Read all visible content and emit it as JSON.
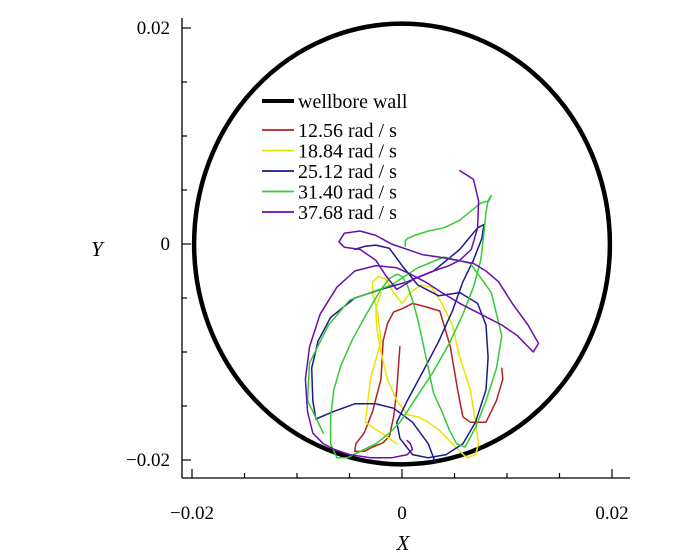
{
  "chart_data": {
    "type": "line",
    "title": "",
    "xlabel": "X",
    "ylabel": "Y",
    "xlim": [
      -0.02,
      0.02
    ],
    "ylim": [
      -0.02,
      0.02
    ],
    "x_ticks": [
      -0.02,
      0,
      0.02
    ],
    "x_tick_labels": [
      "−0.02",
      "0",
      "0.02"
    ],
    "y_ticks": [
      -0.02,
      0,
      0.02
    ],
    "y_tick_labels": [
      "−0.02",
      "0",
      "0.02"
    ],
    "grid": false,
    "legend_position": "top-left",
    "wellbore_wall": {
      "name": "wellbore wall",
      "color": "#000000",
      "center": [
        0,
        0
      ],
      "radius_x": 0.0198,
      "radius_y": 0.0204
    },
    "series": [
      {
        "name": "12.56 rad / s",
        "color": "#b22222",
        "x": [
          0.0095,
          0.0096,
          0.009,
          0.008,
          0.0065,
          0.0058,
          0.0053,
          0.0046,
          0.0036,
          0.0022,
          0.001,
          0.0,
          -0.0008,
          -0.0014,
          -0.0018,
          -0.002,
          -0.0028,
          -0.0036,
          -0.0044,
          -0.0045,
          -0.0036,
          -0.0028,
          -0.0018,
          -0.0012,
          -0.0008,
          -0.0005,
          -0.0002
        ],
        "y": [
          -0.0115,
          -0.0125,
          -0.0145,
          -0.0165,
          -0.0165,
          -0.016,
          -0.0135,
          -0.0095,
          -0.0062,
          -0.0058,
          -0.0055,
          -0.006,
          -0.0063,
          -0.0074,
          -0.009,
          -0.0125,
          -0.0155,
          -0.0175,
          -0.0185,
          -0.0192,
          -0.0192,
          -0.0188,
          -0.0184,
          -0.0178,
          -0.016,
          -0.0135,
          -0.0095
        ]
      },
      {
        "name": "18.84 rad / s",
        "color": "#e6e600",
        "x": [
          -0.0005,
          -0.0035,
          -0.003,
          -0.002,
          -0.0023,
          -0.0028,
          -0.0028,
          -0.0022,
          -0.0015,
          -0.0008,
          0.0,
          0.0008,
          0.0018,
          0.0028,
          0.0038,
          0.0048,
          0.0055,
          0.0065,
          0.007,
          0.0073,
          0.007,
          0.0062,
          0.0055,
          0.0045,
          0.0035,
          0.0025,
          0.0015,
          0.0005,
          -0.0005,
          -0.0014,
          -0.002,
          -0.0024,
          -0.0025,
          -0.002
        ],
        "y": [
          -0.0185,
          -0.0165,
          -0.0125,
          -0.009,
          -0.0065,
          -0.0045,
          -0.0035,
          -0.003,
          -0.0033,
          -0.0045,
          -0.0055,
          -0.0045,
          -0.0038,
          -0.004,
          -0.0055,
          -0.0075,
          -0.0105,
          -0.0135,
          -0.0165,
          -0.0185,
          -0.0195,
          -0.0198,
          -0.0192,
          -0.0182,
          -0.0172,
          -0.0165,
          -0.016,
          -0.0158,
          -0.0145,
          -0.0125,
          -0.01,
          -0.0078,
          -0.006,
          -0.0045
        ]
      },
      {
        "name": "25.12 rad / s",
        "color": "#1a1a8c",
        "x": [
          -0.0045,
          -0.0035,
          -0.0025,
          -0.0012,
          0.0,
          0.0015,
          0.0035,
          0.0055,
          0.0072,
          0.008,
          0.0082,
          0.008,
          0.007,
          0.0058,
          0.0042,
          0.0025,
          0.001,
          -0.0002,
          -0.0005,
          0.0005,
          0.002,
          0.0035,
          0.0048,
          0.0058,
          0.0068,
          0.0076,
          0.0078,
          0.0072,
          0.0055,
          0.003,
          0.0005,
          -0.002,
          -0.0045,
          -0.0068,
          -0.008,
          -0.0086,
          -0.0085,
          -0.0082,
          -0.0065,
          -0.0045,
          -0.0025,
          -0.0008,
          0.001,
          0.0025,
          0.003,
          0.0032
        ],
        "y": [
          -0.0005,
          -0.0002,
          -0.0001,
          -0.0004,
          -0.002,
          -0.0038,
          -0.0048,
          -0.0045,
          -0.0055,
          -0.0075,
          -0.0105,
          -0.0135,
          -0.0165,
          -0.0185,
          -0.0195,
          -0.0198,
          -0.0195,
          -0.018,
          -0.0165,
          -0.0145,
          -0.0118,
          -0.009,
          -0.0062,
          -0.0035,
          -0.0015,
          0.0005,
          0.0018,
          0.0015,
          -0.0005,
          -0.0025,
          -0.0035,
          -0.0042,
          -0.005,
          -0.0068,
          -0.009,
          -0.0115,
          -0.0145,
          -0.0162,
          -0.0155,
          -0.0148,
          -0.0148,
          -0.0152,
          -0.0165,
          -0.0185,
          -0.0198,
          -0.0202
        ]
      },
      {
        "name": "31.40 rad / s",
        "color": "#33cc33",
        "x": [
          -0.0075,
          -0.009,
          -0.0088,
          -0.007,
          -0.005,
          -0.003,
          -0.001,
          0.0015,
          0.004,
          0.0065,
          0.0085,
          0.0095,
          0.009,
          0.008,
          0.007,
          0.006,
          0.0052,
          0.0045,
          0.0038,
          0.003,
          0.0025,
          0.002,
          0.0015,
          0.001,
          0.0005,
          0.0,
          -0.0005,
          -0.0012,
          -0.002,
          -0.0028,
          -0.0038,
          -0.0048,
          -0.0058,
          -0.0065,
          -0.0068,
          -0.0068,
          -0.0062,
          -0.0052,
          -0.004,
          -0.0025,
          -0.0012,
          -0.0002,
          0.0005,
          0.0015,
          0.003,
          0.0045,
          0.0058,
          0.0068,
          0.0075,
          0.0078,
          0.008,
          0.0082,
          0.0085,
          0.0083,
          0.0075,
          0.0065,
          0.0055,
          0.004,
          0.0025,
          0.0012,
          0.0005,
          0.0003,
          0.0003
        ],
        "y": [
          -0.0175,
          -0.0145,
          -0.011,
          -0.0075,
          -0.0052,
          -0.0045,
          -0.0038,
          -0.0022,
          -0.0012,
          -0.0018,
          -0.0045,
          -0.0085,
          -0.0115,
          -0.0145,
          -0.017,
          -0.0188,
          -0.0185,
          -0.0172,
          -0.0155,
          -0.0138,
          -0.0115,
          -0.0092,
          -0.007,
          -0.0052,
          -0.0038,
          -0.003,
          -0.0028,
          -0.0032,
          -0.0042,
          -0.0055,
          -0.0072,
          -0.009,
          -0.0112,
          -0.0135,
          -0.016,
          -0.0185,
          -0.0198,
          -0.0198,
          -0.0192,
          -0.0185,
          -0.0175,
          -0.0165,
          -0.0155,
          -0.014,
          -0.0118,
          -0.0092,
          -0.0065,
          -0.004,
          -0.0015,
          0.001,
          0.003,
          0.004,
          0.0045,
          0.004,
          0.0038,
          0.003,
          0.0022,
          0.0015,
          0.0012,
          0.0008,
          0.0005,
          0.0003,
          -0.0002
        ]
      },
      {
        "name": "37.68 rad / s",
        "color": "#6a0dad",
        "x": [
          0.0055,
          0.0068,
          0.0073,
          0.0072,
          0.0066,
          0.0055,
          0.0045,
          0.003,
          0.0012,
          -0.0005,
          -0.0015,
          -0.0025,
          -0.004,
          -0.0055,
          -0.006,
          -0.0055,
          -0.004,
          -0.0025,
          -0.001,
          0.0005,
          0.002,
          0.0035,
          0.0052,
          0.0068,
          0.008,
          0.0092,
          0.0105,
          0.012,
          0.013,
          0.0125,
          0.012,
          0.011,
          0.0095,
          0.0075,
          0.0055,
          0.0038,
          0.0022,
          0.0008,
          -0.0005,
          -0.0025,
          -0.0045,
          -0.0062,
          -0.0078,
          -0.0088,
          -0.0092,
          -0.009,
          -0.0085,
          -0.0075,
          -0.0065,
          -0.005,
          -0.003,
          -0.001,
          0.0005,
          0.001,
          0.0008,
          0.0005
        ],
        "y": [
          0.0068,
          0.006,
          0.004,
          0.0015,
          -0.0005,
          -0.0015,
          -0.002,
          -0.0025,
          -0.0032,
          -0.0042,
          -0.003,
          -0.0015,
          -0.0005,
          -0.0003,
          0.0002,
          0.001,
          0.0012,
          0.0008,
          0.0,
          -0.0005,
          -0.001,
          -0.0012,
          -0.0015,
          -0.0018,
          -0.0025,
          -0.0035,
          -0.0055,
          -0.0075,
          -0.0092,
          -0.01,
          -0.0095,
          -0.0085,
          -0.0075,
          -0.0065,
          -0.0055,
          -0.0045,
          -0.0035,
          -0.0028,
          -0.0022,
          -0.002,
          -0.0025,
          -0.004,
          -0.0065,
          -0.0095,
          -0.0125,
          -0.0155,
          -0.0175,
          -0.0185,
          -0.019,
          -0.0195,
          -0.0198,
          -0.0198,
          -0.0195,
          -0.019,
          -0.0185,
          -0.0182
        ]
      }
    ]
  }
}
